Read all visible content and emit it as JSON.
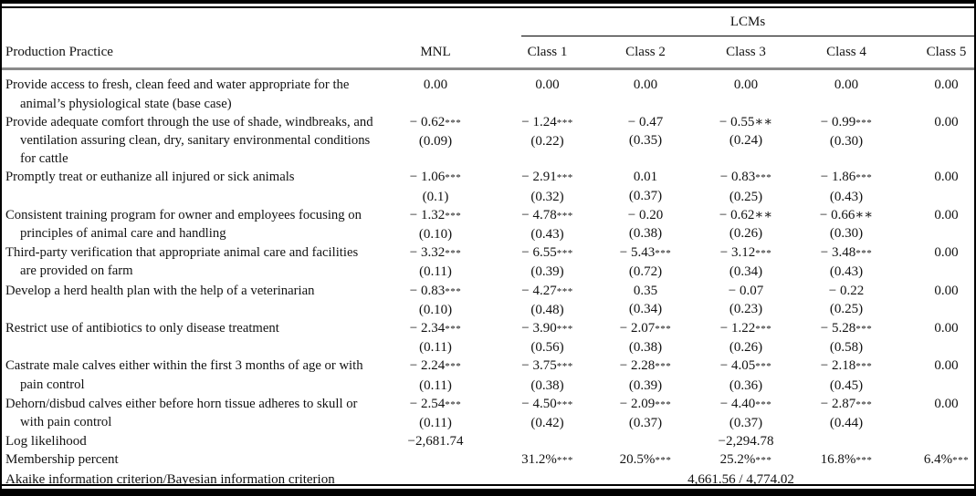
{
  "table": {
    "spanner": "LCMs",
    "columns": [
      "Production Practice",
      "MNL",
      "Class 1",
      "Class 2",
      "Class 3",
      "Class 4",
      "Class 5"
    ],
    "rows": [
      {
        "type": "practice",
        "label": "Provide access to fresh, clean feed and water appropriate for the animal’s physiological state (base case)",
        "cells": [
          {
            "v": "0.00"
          },
          {
            "v": "0.00"
          },
          {
            "v": "0.00"
          },
          {
            "v": "0.00"
          },
          {
            "v": "0.00"
          },
          {
            "v": "0.00"
          }
        ]
      },
      {
        "type": "practice",
        "label": "Provide adequate comfort through the use of shade, windbreaks, and ventilation assuring clean, dry, sanitary environmental conditions for cattle",
        "cells": [
          {
            "v": "− 0.62",
            "stars": "***",
            "se": "(0.09)"
          },
          {
            "v": "− 1.24",
            "stars": "***",
            "se": "(0.22)"
          },
          {
            "v": "− 0.47",
            "se": "(0.35)"
          },
          {
            "v": "− 0.55",
            "stars": "**",
            "se": "(0.24)"
          },
          {
            "v": "− 0.99",
            "stars": "***",
            "se": "(0.30)"
          },
          {
            "v": "0.00"
          }
        ]
      },
      {
        "type": "practice",
        "label": "Promptly treat or euthanize all injured or sick animals",
        "cells": [
          {
            "v": "− 1.06",
            "stars": "***",
            "se": "(0.1)"
          },
          {
            "v": "− 2.91",
            "stars": "***",
            "se": "(0.32)"
          },
          {
            "v": "0.01",
            "se": "(0.37)"
          },
          {
            "v": "− 0.83",
            "stars": "***",
            "se": "(0.25)"
          },
          {
            "v": "− 1.86",
            "stars": "***",
            "se": "(0.43)"
          },
          {
            "v": "0.00"
          }
        ]
      },
      {
        "type": "practice",
        "label": "Consistent training program for owner and employees focusing on principles of animal care and handling",
        "cells": [
          {
            "v": "− 1.32",
            "stars": "***",
            "se": "(0.10)"
          },
          {
            "v": "− 4.78",
            "stars": "***",
            "se": "(0.43)"
          },
          {
            "v": "− 0.20",
            "se": "(0.38)"
          },
          {
            "v": "− 0.62",
            "stars": "**",
            "se": "(0.26)"
          },
          {
            "v": "− 0.66",
            "stars": "**",
            "se": "(0.30)"
          },
          {
            "v": "0.00"
          }
        ]
      },
      {
        "type": "practice",
        "label": "Third-party verification that appropriate animal care and facilities are provided on farm",
        "cells": [
          {
            "v": "− 3.32",
            "stars": "***",
            "se": "(0.11)"
          },
          {
            "v": "− 6.55",
            "stars": "***",
            "se": "(0.39)"
          },
          {
            "v": "− 5.43",
            "stars": "***",
            "se": "(0.72)"
          },
          {
            "v": "− 3.12",
            "stars": "***",
            "se": "(0.34)"
          },
          {
            "v": "− 3.48",
            "stars": "***",
            "se": "(0.43)"
          },
          {
            "v": "0.00"
          }
        ]
      },
      {
        "type": "practice",
        "label": "Develop a herd health plan with the help of a veterinarian",
        "cells": [
          {
            "v": "− 0.83",
            "stars": "***",
            "se": "(0.10)"
          },
          {
            "v": "− 4.27",
            "stars": "***",
            "se": "(0.48)"
          },
          {
            "v": "0.35",
            "se": "(0.34)"
          },
          {
            "v": "− 0.07",
            "se": "(0.23)"
          },
          {
            "v": "− 0.22",
            "se": "(0.25)"
          },
          {
            "v": "0.00"
          }
        ]
      },
      {
        "type": "practice",
        "label": "Restrict use of antibiotics to only disease treatment",
        "cells": [
          {
            "v": "− 2.34",
            "stars": "***",
            "se": "(0.11)"
          },
          {
            "v": "− 3.90",
            "stars": "***",
            "se": "(0.56)"
          },
          {
            "v": "− 2.07",
            "stars": "***",
            "se": "(0.38)"
          },
          {
            "v": "− 1.22",
            "stars": "***",
            "se": "(0.26)"
          },
          {
            "v": "− 5.28",
            "stars": "***",
            "se": "(0.58)"
          },
          {
            "v": "0.00"
          }
        ]
      },
      {
        "type": "practice",
        "label": "Castrate male calves either within the first 3 months of age or with pain control",
        "cells": [
          {
            "v": "− 2.24",
            "stars": "***",
            "se": "(0.11)"
          },
          {
            "v": "− 3.75",
            "stars": "***",
            "se": "(0.38)"
          },
          {
            "v": "− 2.28",
            "stars": "***",
            "se": "(0.39)"
          },
          {
            "v": "− 4.05",
            "stars": "***",
            "se": "(0.36)"
          },
          {
            "v": "− 2.18",
            "stars": "***",
            "se": "(0.45)"
          },
          {
            "v": "0.00"
          }
        ]
      },
      {
        "type": "practice",
        "label": "Dehorn/disbud calves either before horn tissue adheres to skull or with pain control",
        "cells": [
          {
            "v": "− 2.54",
            "stars": "***",
            "se": "(0.11)"
          },
          {
            "v": "− 4.50",
            "stars": "***",
            "se": "(0.42)"
          },
          {
            "v": "− 2.09",
            "stars": "***",
            "se": "(0.37)"
          },
          {
            "v": "− 4.40",
            "stars": "***",
            "se": "(0.37)"
          },
          {
            "v": "− 2.87",
            "stars": "***",
            "se": "(0.44)"
          },
          {
            "v": "0.00"
          }
        ]
      },
      {
        "type": "stat",
        "label": "Log likelihood",
        "cells": [
          {
            "v": "−2,681.74"
          },
          null,
          null,
          {
            "v": "−2,294.78"
          },
          null,
          null
        ]
      },
      {
        "type": "stat",
        "label": "Membership percent",
        "cells": [
          null,
          {
            "v": "31.2%",
            "stars": "***"
          },
          {
            "v": "20.5%",
            "stars": "***"
          },
          {
            "v": "25.2%",
            "stars": "***"
          },
          {
            "v": "16.8%",
            "stars": "***"
          },
          {
            "v": "6.4%",
            "stars": "***"
          }
        ]
      },
      {
        "type": "span",
        "label": "Akaike information criterion/Bayesian information criterion",
        "span_value": "4,661.56 / 4,774.02"
      }
    ]
  }
}
